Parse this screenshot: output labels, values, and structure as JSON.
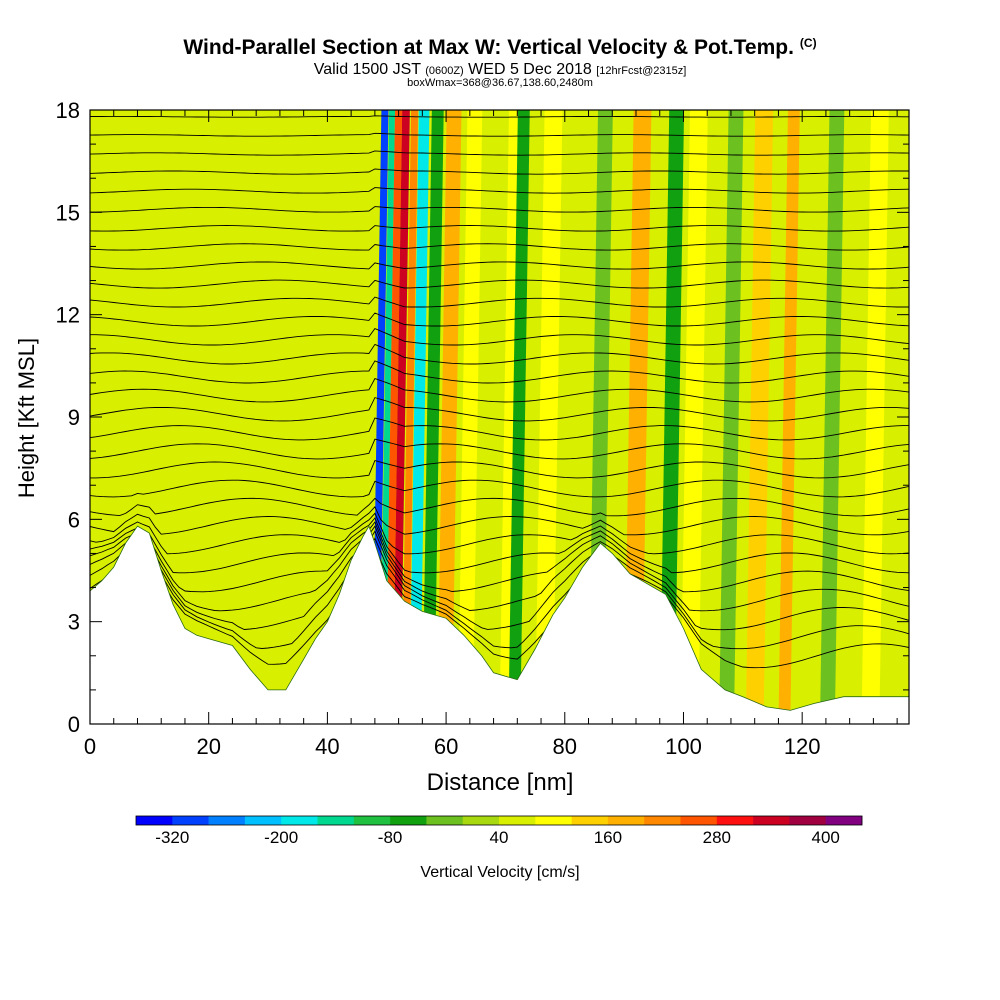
{
  "header": {
    "title": "Wind-Parallel Section at Max W: Vertical Velocity & Pot.Temp.",
    "copyright": "(C)",
    "valid_prefix": "Valid 1500 JST",
    "valid_utc": "(0600Z)",
    "valid_date": "WED 5 Dec 2018",
    "forecast": "[12hrFcst@2315z]",
    "box_info": "boxWmax=368@36.67,138.60,2480m"
  },
  "chart_data": {
    "type": "heatmap",
    "title": "Wind-Parallel Section at Max W: Vertical Velocity & Pot.Temp.",
    "xlabel": "Distance [nm]",
    "ylabel": "Height [Kft MSL]",
    "xlim": [
      0,
      138
    ],
    "ylim": [
      0,
      18
    ],
    "x_ticks": [
      "0",
      "20",
      "40",
      "60",
      "80",
      "100",
      "120"
    ],
    "y_ticks": [
      "0",
      "3",
      "6",
      "9",
      "12",
      "15",
      "18"
    ],
    "colorbar": {
      "label": "Vertical Velocity [cm/s]",
      "tick_labels": [
        "-320",
        "-200",
        "-80",
        "40",
        "160",
        "280",
        "400"
      ],
      "levels": [
        -360,
        -320,
        -280,
        -240,
        -200,
        -160,
        -120,
        -80,
        -40,
        0,
        40,
        80,
        120,
        160,
        200,
        240,
        280,
        320,
        360,
        400
      ],
      "colors": [
        "#0000ff",
        "#0040ff",
        "#0080ff",
        "#00c0ff",
        "#00e8e8",
        "#00d890",
        "#20c040",
        "#10a010",
        "#6cc020",
        "#a8d810",
        "#d8f000",
        "#ffff00",
        "#ffd000",
        "#ffb000",
        "#ff8800",
        "#ff5500",
        "#ff1010",
        "#cc0020",
        "#a00040",
        "#800080"
      ]
    },
    "terrain_kft": [
      [
        0,
        3.9
      ],
      [
        2,
        4.2
      ],
      [
        4,
        4.6
      ],
      [
        6,
        5.3
      ],
      [
        8,
        5.8
      ],
      [
        10,
        5.6
      ],
      [
        12,
        4.5
      ],
      [
        14,
        3.5
      ],
      [
        16,
        2.8
      ],
      [
        18,
        2.6
      ],
      [
        20,
        2.5
      ],
      [
        24,
        2.3
      ],
      [
        27,
        1.6
      ],
      [
        30,
        1.0
      ],
      [
        33,
        1.0
      ],
      [
        36,
        1.9
      ],
      [
        38,
        2.5
      ],
      [
        40,
        3.0
      ],
      [
        42,
        3.8
      ],
      [
        44,
        4.8
      ],
      [
        46,
        5.5
      ],
      [
        47,
        5.8
      ],
      [
        48,
        5.3
      ],
      [
        50,
        4.2
      ],
      [
        53,
        3.6
      ],
      [
        56,
        3.3
      ],
      [
        60,
        3.1
      ],
      [
        63,
        2.6
      ],
      [
        66,
        2.0
      ],
      [
        68,
        1.5
      ],
      [
        72,
        1.3
      ],
      [
        75,
        2.2
      ],
      [
        78,
        3.2
      ],
      [
        80,
        3.7
      ],
      [
        83,
        4.6
      ],
      [
        86,
        5.3
      ],
      [
        88,
        5.0
      ],
      [
        91,
        4.4
      ],
      [
        94,
        4.1
      ],
      [
        97,
        3.8
      ],
      [
        100,
        2.8
      ],
      [
        103,
        1.6
      ],
      [
        107,
        1.0
      ],
      [
        110,
        0.8
      ],
      [
        114,
        0.5
      ],
      [
        118,
        0.4
      ],
      [
        122,
        0.6
      ],
      [
        127,
        0.8
      ],
      [
        132,
        0.8
      ],
      [
        138,
        0.8
      ]
    ],
    "vertical_velocity_bands": [
      {
        "x": 47.5,
        "width": 1.2,
        "value": -320
      },
      {
        "x": 48.8,
        "width": 1.0,
        "value": -160
      },
      {
        "x": 49.8,
        "width": 1.2,
        "value": 240
      },
      {
        "x": 51.0,
        "width": 1.3,
        "value": 320
      },
      {
        "x": 52.5,
        "width": 1.2,
        "value": 200
      },
      {
        "x": 53.8,
        "width": 1.8,
        "value": -200
      },
      {
        "x": 56.0,
        "width": 2.0,
        "value": -80
      },
      {
        "x": 58.5,
        "width": 2.5,
        "value": 160
      },
      {
        "x": 62.0,
        "width": 2.5,
        "value": 80
      },
      {
        "x": 69.0,
        "width": 3.0,
        "value": 80
      },
      {
        "x": 70.5,
        "width": 2.0,
        "value": -80
      },
      {
        "x": 75.0,
        "width": 3.0,
        "value": 80
      },
      {
        "x": 84.0,
        "width": 2.5,
        "value": -40
      },
      {
        "x": 90.0,
        "width": 3.0,
        "value": 160
      },
      {
        "x": 96.0,
        "width": 2.5,
        "value": -80
      },
      {
        "x": 99.5,
        "width": 3.0,
        "value": 80
      },
      {
        "x": 106.0,
        "width": 2.5,
        "value": -40
      },
      {
        "x": 110.5,
        "width": 3.0,
        "value": 120
      },
      {
        "x": 116.0,
        "width": 2.0,
        "value": 160
      },
      {
        "x": 123.0,
        "width": 2.5,
        "value": -40
      },
      {
        "x": 130.0,
        "width": 3.0,
        "value": 80
      }
    ],
    "potential_temperature_contours": {
      "count": 30,
      "min_kft": 2.0,
      "max_kft": 17.8
    }
  }
}
